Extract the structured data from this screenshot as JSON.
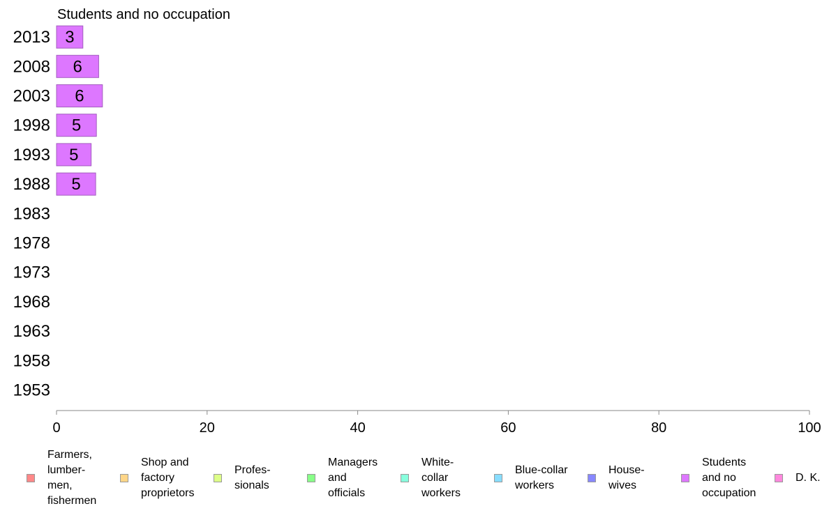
{
  "chart_data": {
    "type": "bar",
    "title": "Students and no occupation",
    "categories": [
      "2013",
      "2008",
      "2003",
      "1998",
      "1993",
      "1988",
      "1983",
      "1978",
      "1973",
      "1968",
      "1963",
      "1958",
      "1953"
    ],
    "values": [
      3.5,
      5.6,
      6.1,
      5.3,
      4.6,
      5.2,
      null,
      null,
      null,
      null,
      null,
      null,
      null
    ],
    "data_labels": [
      "3",
      "6",
      "6",
      "5",
      "5",
      "5",
      "",
      "",
      "",
      "",
      "",
      "",
      ""
    ],
    "xlim": [
      0,
      100
    ],
    "xticks": [
      "0",
      "20",
      "40",
      "60",
      "80",
      "100"
    ],
    "orientation": "horizontal",
    "bar_color": "#dd77ff",
    "legend": [
      {
        "label": "Farmers,\nlumber-\nmen,\nfishermen",
        "color": "#ff8888"
      },
      {
        "label": "Shop and\nfactory\nproprietors",
        "color": "#ffd688"
      },
      {
        "label": "Profes-\nsionals",
        "color": "#ddff88"
      },
      {
        "label": "Managers\nand\nofficials",
        "color": "#88ff88"
      },
      {
        "label": "White-\ncollar\nworkers",
        "color": "#88ffdd"
      },
      {
        "label": "Blue-collar\nworkers",
        "color": "#88ddff"
      },
      {
        "label": "House-\nwives",
        "color": "#8888ff"
      },
      {
        "label": "Students\nand no\noccupation",
        "color": "#dd77ff"
      },
      {
        "label": "D. K.",
        "color": "#ff88dd"
      }
    ]
  }
}
